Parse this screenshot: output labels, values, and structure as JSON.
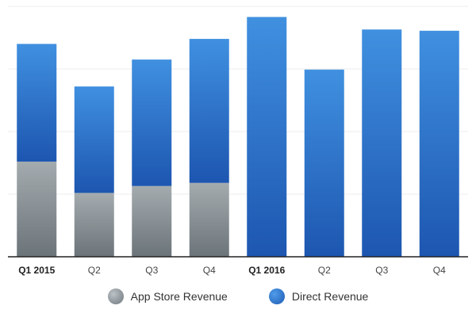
{
  "chart_data": {
    "type": "bar",
    "stacked": true,
    "categories": [
      "Q1 2015",
      "Q2",
      "Q3",
      "Q4",
      "Q1 2016",
      "Q2",
      "Q3",
      "Q4"
    ],
    "bold_categories": [
      "Q1 2015",
      "Q1 2016"
    ],
    "series": [
      {
        "name": "App Store Revenue",
        "values": [
          152,
          102,
          113,
          118,
          0,
          0,
          0,
          0
        ],
        "color": "#8e979c"
      },
      {
        "name": "Direct Revenue",
        "values": [
          188,
          170,
          202,
          230,
          383,
          299,
          363,
          361
        ],
        "color": "#2f74cf"
      }
    ],
    "ylim": [
      0,
      400
    ],
    "grid": true,
    "legend_position": "bottom-center"
  }
}
